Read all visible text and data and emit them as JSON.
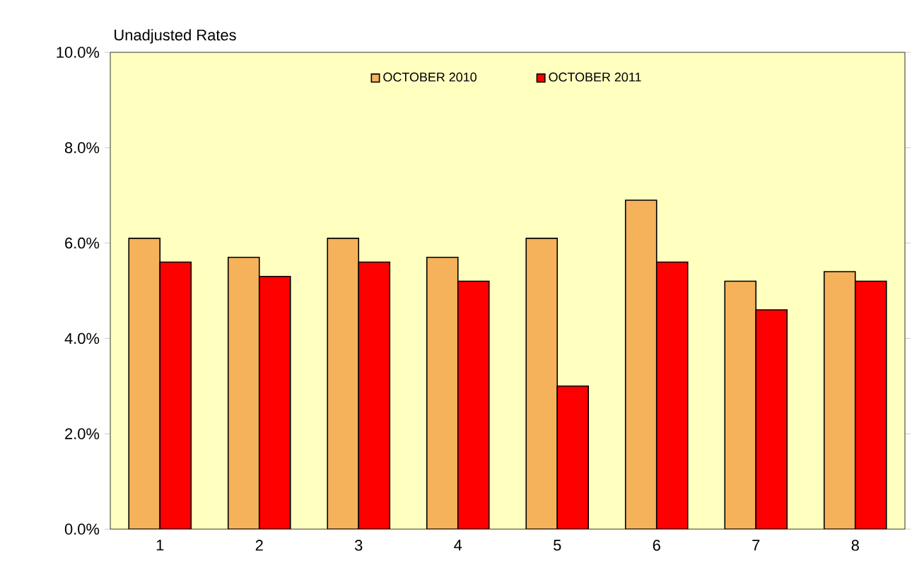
{
  "chart_data": {
    "type": "bar",
    "ylabel": "Unadjusted Rates",
    "categories": [
      "1",
      "2",
      "3",
      "4",
      "5",
      "6",
      "7",
      "8"
    ],
    "series": [
      {
        "name": "OCTOBER 2010",
        "color": "#f5b25a",
        "values": [
          6.1,
          5.7,
          6.1,
          5.7,
          6.1,
          6.9,
          5.2,
          5.4
        ]
      },
      {
        "name": "OCTOBER 2011",
        "color": "#ff0000",
        "values": [
          5.6,
          5.3,
          5.6,
          5.2,
          3.0,
          5.6,
          4.6,
          5.2
        ]
      }
    ],
    "ylim": [
      0,
      10
    ],
    "yticks": [
      {
        "value": 0,
        "label": "0.0%"
      },
      {
        "value": 2,
        "label": "2.0%"
      },
      {
        "value": 4,
        "label": "4.0%"
      },
      {
        "value": 6,
        "label": "6.0%"
      },
      {
        "value": 8,
        "label": "8.0%"
      },
      {
        "value": 10,
        "label": "10.0%"
      }
    ],
    "grid": false,
    "legend": "top"
  }
}
